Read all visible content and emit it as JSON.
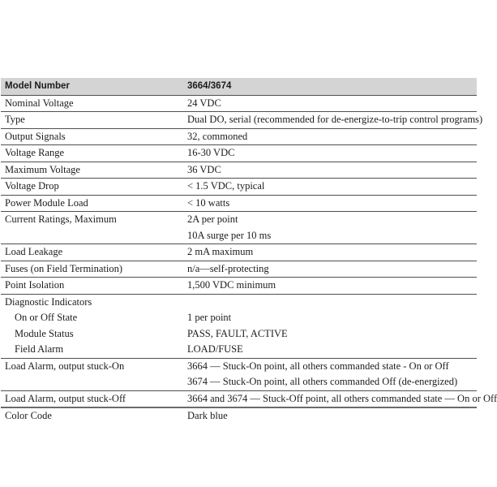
{
  "page": {
    "background": "#ffffff"
  },
  "colors": {
    "header_bg": "#d4d4d4",
    "rule": "#4f4f4f",
    "thick_rule": "#6b6b6b",
    "text": "#1c1c1c"
  },
  "table": {
    "header": {
      "label": "Model Number",
      "value": "3664/3674"
    },
    "rows": [
      {
        "label": "Nominal Voltage",
        "values": [
          "24 VDC"
        ]
      },
      {
        "label": "Type",
        "values": [
          "Dual DO, serial (recommended for de-energize-to-trip control programs)"
        ]
      },
      {
        "label": "Output Signals",
        "values": [
          "32, commoned"
        ]
      },
      {
        "label": "Voltage Range",
        "values": [
          "16-30 VDC"
        ]
      },
      {
        "label": "Maximum Voltage",
        "values": [
          "36 VDC"
        ]
      },
      {
        "label": "Voltage Drop",
        "values": [
          "< 1.5 VDC, typical"
        ]
      },
      {
        "label": "Power Module Load",
        "values": [
          "< 10 watts"
        ]
      },
      {
        "label": "Current Ratings, Maximum",
        "values": [
          "2A per point",
          "10A surge per 10 ms"
        ]
      },
      {
        "label": "Load Leakage",
        "values": [
          "2 mA maximum"
        ]
      },
      {
        "label": "Fuses (on Field Termination)",
        "values": [
          "n/a—self-protecting"
        ]
      },
      {
        "label": "Point Isolation",
        "values": [
          "1,500 VDC minimum"
        ]
      },
      {
        "label": "Diagnostic Indicators",
        "values": [],
        "sub": [
          {
            "label": "On or Off State",
            "values": [
              "1 per point"
            ]
          },
          {
            "label": "Module Status",
            "values": [
              "PASS, FAULT, ACTIVE"
            ]
          },
          {
            "label": "Field Alarm",
            "values": [
              "LOAD/FUSE"
            ]
          }
        ]
      },
      {
        "label": "Load Alarm, output stuck-On",
        "values": [
          "3664 — Stuck-On point, all others commanded state - On or Off",
          "3674 — Stuck-On point, all others commanded Off (de-energized)"
        ]
      },
      {
        "label": "Load Alarm, output stuck-Off",
        "values": [
          "3664 and 3674 — Stuck-Off point, all others commanded state — On or Off"
        ]
      },
      {
        "label": "Color Code",
        "values": [
          "Dark blue"
        ]
      }
    ]
  }
}
